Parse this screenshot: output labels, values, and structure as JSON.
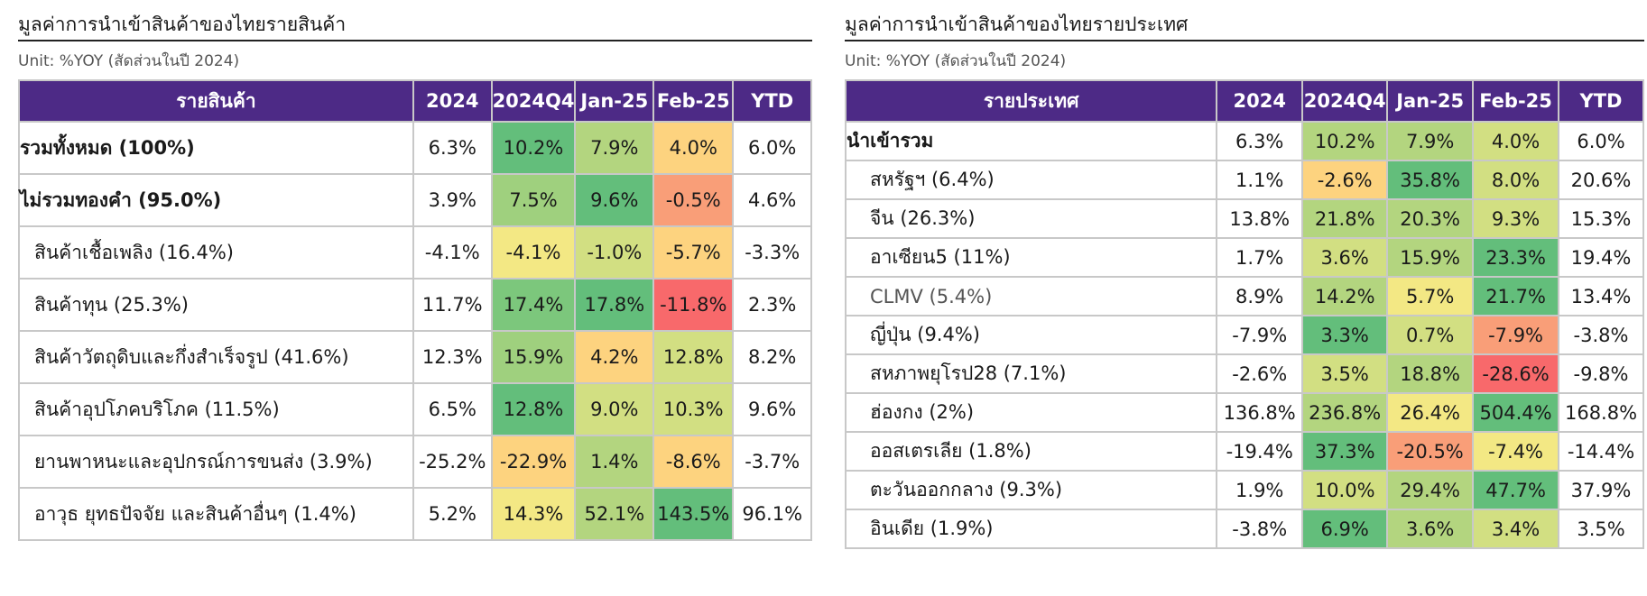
{
  "left": {
    "title": "มูลค่าการนำเข้าสินค้าของไทยรายสินค้า",
    "unit": "Unit: %YOY (สัดส่วนในปี 2024)",
    "headers": [
      "รายสินค้า",
      "2024",
      "2024Q4",
      "Jan-25",
      "Feb-25",
      "YTD"
    ],
    "rows": [
      {
        "label": "รวมทั้งหมด (100%)",
        "v": [
          "6.3%",
          "10.2%",
          "7.9%",
          "4.0%",
          "6.0%"
        ]
      },
      {
        "label": "ไม่รวมทองคำ (95.0%)",
        "v": [
          "3.9%",
          "7.5%",
          "9.6%",
          "-0.5%",
          "4.6%"
        ]
      },
      {
        "label": "สินค้าเชื้อเพลิง (16.4%)",
        "v": [
          "-4.1%",
          "-4.1%",
          "-1.0%",
          "-5.7%",
          "-3.3%"
        ]
      },
      {
        "label": "สินค้าทุน (25.3%)",
        "v": [
          "11.7%",
          "17.4%",
          "17.8%",
          "-11.8%",
          "2.3%"
        ]
      },
      {
        "label": "สินค้าวัตถุดิบและกึ่งสำเร็จรูป (41.6%)",
        "v": [
          "12.3%",
          "15.9%",
          "4.2%",
          "12.8%",
          "8.2%"
        ]
      },
      {
        "label": "สินค้าอุปโภคบริโภค (11.5%)",
        "v": [
          "6.5%",
          "12.8%",
          "9.0%",
          "10.3%",
          "9.6%"
        ]
      },
      {
        "label": "ยานพาหนะและอุปกรณ์การขนส่ง (3.9%)",
        "v": [
          "-25.2%",
          "-22.9%",
          "1.4%",
          "-8.6%",
          "-3.7%"
        ]
      },
      {
        "label": "อาวุธ ยุทธปัจจัย และสินค้าอื่นๆ (1.4%)",
        "v": [
          "5.2%",
          "14.3%",
          "52.1%",
          "143.5%",
          "96.1%"
        ]
      }
    ]
  },
  "right": {
    "title": "มูลค่าการนำเข้าสินค้าของไทยรายประเทศ",
    "unit": "Unit: %YOY (สัดส่วนในปี 2024)",
    "headers": [
      "รายประเทศ",
      "2024",
      "2024Q4",
      "Jan-25",
      "Feb-25",
      "YTD"
    ],
    "rows": [
      {
        "label": "นำเข้ารวม",
        "v": [
          "6.3%",
          "10.2%",
          "7.9%",
          "4.0%",
          "6.0%"
        ]
      },
      {
        "label": "สหรัฐฯ (6.4%)",
        "v": [
          "1.1%",
          "-2.6%",
          "35.8%",
          "8.0%",
          "20.6%"
        ]
      },
      {
        "label": "จีน (26.3%)",
        "v": [
          "13.8%",
          "21.8%",
          "20.3%",
          "9.3%",
          "15.3%"
        ]
      },
      {
        "label": "อาเซียน5 (11%)",
        "v": [
          "1.7%",
          "3.6%",
          "15.9%",
          "23.3%",
          "19.4%"
        ]
      },
      {
        "label": "CLMV (5.4%)",
        "v": [
          "8.9%",
          "14.2%",
          "5.7%",
          "21.7%",
          "13.4%"
        ]
      },
      {
        "label": "ญี่ปุ่น (9.4%)",
        "v": [
          "-7.9%",
          "3.3%",
          "0.7%",
          "-7.9%",
          "-3.8%"
        ]
      },
      {
        "label": "สหภาพยุโรป28 (7.1%)",
        "v": [
          "-2.6%",
          "3.5%",
          "18.8%",
          "-28.6%",
          "-9.8%"
        ]
      },
      {
        "label": "ฮ่องกง (2%)",
        "v": [
          "136.8%",
          "236.8%",
          "26.4%",
          "504.4%",
          "168.8%"
        ]
      },
      {
        "label": "ออสเตรเลีย (1.8%)",
        "v": [
          "-19.4%",
          "37.3%",
          "-20.5%",
          "-7.4%",
          "-14.4%"
        ]
      },
      {
        "label": "ตะวันออกกลาง (9.3%)",
        "v": [
          "1.9%",
          "10.0%",
          "29.4%",
          "47.7%",
          "37.9%"
        ]
      },
      {
        "label": "อินเดีย (1.9%)",
        "v": [
          "-3.8%",
          "6.9%",
          "3.6%",
          "3.4%",
          "3.5%"
        ]
      }
    ]
  },
  "heat_colors": {
    "dark_green": "#63be7b",
    "green": "#7cc77c",
    "mid_green": "#9fd07e",
    "light_green": "#b3d57f",
    "lime": "#d2df82",
    "yellow": "#f3e884",
    "light_orange": "#fdd37f",
    "orange": "#fbb87b",
    "dark_orange": "#f99e78",
    "red": "#f8696b"
  },
  "left_colors": [
    [
      "dark_green",
      "light_green",
      "light_orange"
    ],
    [
      "mid_green",
      "dark_green",
      "dark_orange"
    ],
    [
      "yellow",
      "lime",
      "light_orange"
    ],
    [
      "green",
      "dark_green",
      "red"
    ],
    [
      "mid_green",
      "light_orange",
      "lime"
    ],
    [
      "dark_green",
      "lime",
      "lime"
    ],
    [
      "light_orange",
      "light_green",
      "light_orange"
    ],
    [
      "yellow",
      "light_green",
      "dark_green"
    ]
  ],
  "right_colors": [
    [
      "light_green",
      "light_green",
      "lime"
    ],
    [
      "light_orange",
      "dark_green",
      "lime"
    ],
    [
      "light_green",
      "light_green",
      "lime"
    ],
    [
      "lime",
      "light_green",
      "dark_green"
    ],
    [
      "light_green",
      "yellow",
      "dark_green"
    ],
    [
      "dark_green",
      "lime",
      "dark_orange"
    ],
    [
      "lime",
      "light_green",
      "red"
    ],
    [
      "light_green",
      "yellow",
      "dark_green"
    ],
    [
      "dark_green",
      "dark_orange",
      "yellow"
    ],
    [
      "lime",
      "light_green",
      "dark_green"
    ],
    [
      "dark_green",
      "light_green",
      "lime"
    ]
  ]
}
